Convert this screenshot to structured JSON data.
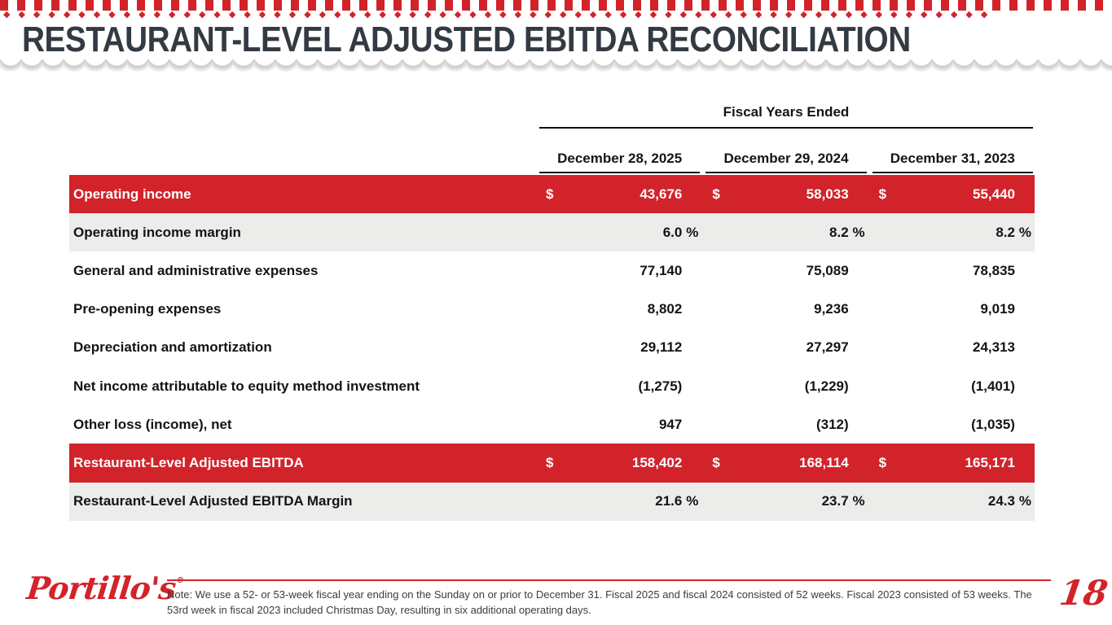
{
  "slide": {
    "title": "RESTAURANT-LEVEL ADJUSTED EBITDA RECONCILIATION",
    "page_number": "18",
    "logo_text": "Portillo's",
    "logo_mark": "®",
    "note": "Note: We use a 52- or 53-week fiscal year ending on the Sunday on or prior to December 31. Fiscal 2025 and fiscal 2024 consisted of 52 weeks. Fiscal 2023 consisted of 53 weeks. The 53rd week in fiscal 2023 included Christmas Day, resulting in six additional operating days."
  },
  "colors": {
    "brand_red": "#d2232a",
    "row_gray": "#ececea",
    "title_charcoal": "#333a42"
  },
  "table": {
    "group_header": "Fiscal Years Ended",
    "currency_symbol": "$",
    "columns": [
      "December 28, 2025",
      "December 29, 2024",
      "December 31, 2023"
    ],
    "rows": [
      {
        "label": "Operating income",
        "style": "red",
        "dollar": true,
        "values": [
          "43,676",
          "58,033",
          "55,440"
        ]
      },
      {
        "label": "Operating income margin",
        "style": "gray",
        "suffix": "%",
        "values": [
          "6.0",
          "8.2",
          "8.2"
        ]
      },
      {
        "label": "General and administrative expenses",
        "style": "plain",
        "values": [
          "77,140",
          "75,089",
          "78,835"
        ]
      },
      {
        "label": "Pre-opening expenses",
        "style": "plain",
        "values": [
          "8,802",
          "9,236",
          "9,019"
        ]
      },
      {
        "label": "Depreciation and amortization",
        "style": "plain",
        "values": [
          "29,112",
          "27,297",
          "24,313"
        ]
      },
      {
        "label": "Net income attributable to equity method investment",
        "style": "plain",
        "values": [
          "(1,275)",
          "(1,229)",
          "(1,401)"
        ]
      },
      {
        "label": "Other loss (income), net",
        "style": "plain",
        "values": [
          "947",
          "(312)",
          "(1,035)"
        ]
      },
      {
        "label": "Restaurant-Level Adjusted EBITDA",
        "style": "red",
        "dollar": true,
        "values": [
          "158,402",
          "168,114",
          "165,171"
        ]
      },
      {
        "label": "Restaurant-Level Adjusted EBITDA Margin",
        "style": "gray",
        "suffix": "%",
        "values": [
          "21.6",
          "23.7",
          "24.3"
        ]
      }
    ]
  }
}
